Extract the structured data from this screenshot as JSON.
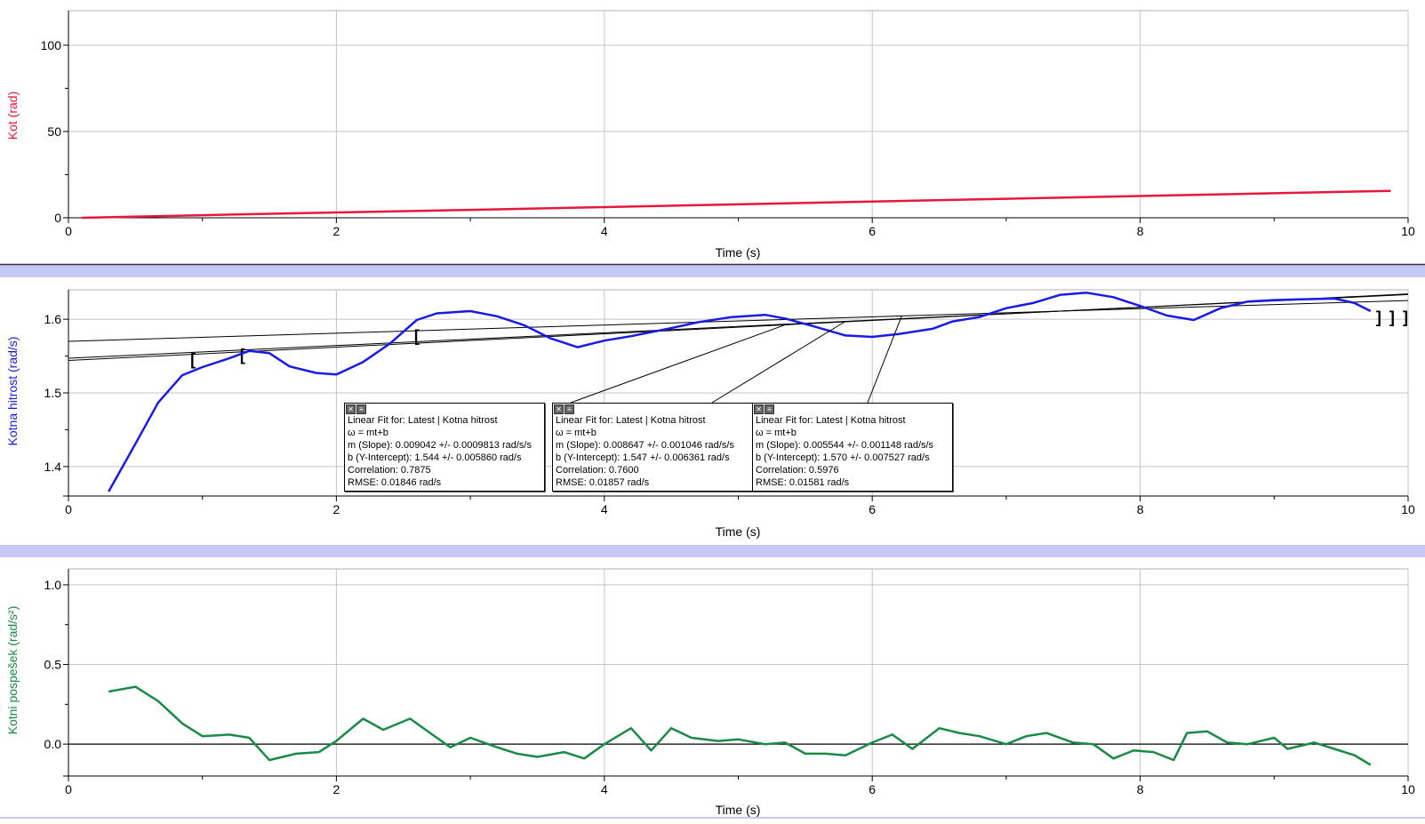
{
  "charts": [
    {
      "ylabel": "Kot (rad)",
      "xlabel": "Time (s)",
      "color": "#e8173c",
      "yticks": [
        "100",
        "50",
        "0"
      ],
      "xticks": [
        "0",
        "2",
        "4",
        "6",
        "8",
        "10"
      ]
    },
    {
      "ylabel": "Kotna hitrost (rad/s)",
      "xlabel": "Time (s)",
      "color": "#1a1ae6",
      "yticks": [
        "1.6",
        "1.5",
        "1.4"
      ],
      "xticks": [
        "0",
        "2",
        "4",
        "6",
        "8",
        "10"
      ]
    },
    {
      "ylabel": "Kotni pospešek (rad/s²)",
      "xlabel": "Time (s)",
      "color": "#1a8a46",
      "yticks": [
        "1.0",
        "0.5",
        "0.0"
      ],
      "xticks": [
        "0",
        "2",
        "4",
        "6",
        "8",
        "10"
      ]
    }
  ],
  "fits": [
    {
      "title": "Linear Fit for: Latest | Kotna hitrost",
      "equation": "ω = mt+b",
      "slope": "m (Slope): 0.009042 +/- 0.0009813 rad/s/s",
      "intercept": "b (Y-Intercept): 1.544 +/- 0.005860 rad/s",
      "correlation": "Correlation: 0.7875",
      "rmse": "RMSE: 0.01846 rad/s"
    },
    {
      "title": "Linear Fit for: Latest | Kotna hitrost",
      "equation": "ω = mt+b",
      "slope": "m (Slope): 0.008647 +/- 0.001046 rad/s/s",
      "intercept": "b (Y-Intercept): 1.547 +/- 0.006361 rad/s",
      "correlation": "Correlation: 0.7600",
      "rmse": "RMSE: 0.01857 rad/s"
    },
    {
      "title": "Linear Fit for: Latest | Kotna hitrost",
      "equation": "ω = mt+b",
      "slope": "m (Slope): 0.005544 +/- 0.001148 rad/s/s",
      "intercept": "b (Y-Intercept): 1.570 +/- 0.007527 rad/s",
      "correlation": "Correlation: 0.5976",
      "rmse": "RMSE: 0.01581 rad/s"
    }
  ],
  "chart_data": [
    {
      "type": "line",
      "xlabel": "Time (s)",
      "ylabel": "Kot (rad)",
      "xlim": [
        0,
        10
      ],
      "ylim": [
        0,
        120
      ],
      "grid": true,
      "series": [
        {
          "x": [
            0.1,
            1,
            2,
            3,
            4,
            5,
            6,
            7,
            8,
            9,
            9.87
          ],
          "y": [
            0,
            1.5,
            3.1,
            4.6,
            6.2,
            7.8,
            9.4,
            11,
            12.6,
            14.2,
            15.6
          ]
        }
      ]
    },
    {
      "type": "line",
      "xlabel": "Time (s)",
      "ylabel": "Kotna hitrost (rad/s)",
      "xlim": [
        0,
        10
      ],
      "ylim": [
        1.36,
        1.64
      ],
      "grid": true,
      "series": [
        {
          "x": [
            0.3,
            0.5,
            0.67,
            0.85,
            1.0,
            1.2,
            1.35,
            1.5,
            1.65,
            1.85,
            2.0,
            2.2,
            2.4,
            2.6,
            2.75,
            3.0,
            3.2,
            3.4,
            3.6,
            3.8,
            4.0,
            4.2,
            4.5,
            4.7,
            4.95,
            5.2,
            5.35,
            5.55,
            5.8,
            6.0,
            6.2,
            6.45,
            6.6,
            6.8,
            7.0,
            7.2,
            7.4,
            7.6,
            7.8,
            8.0,
            8.2,
            8.4,
            8.6,
            8.8,
            9.0,
            9.2,
            9.45,
            9.6,
            9.72
          ],
          "y": [
            1.366,
            1.431,
            1.487,
            1.524,
            1.535,
            1.547,
            1.557,
            1.554,
            1.536,
            1.527,
            1.525,
            1.542,
            1.567,
            1.599,
            1.608,
            1.611,
            1.604,
            1.592,
            1.574,
            1.562,
            1.571,
            1.577,
            1.588,
            1.596,
            1.603,
            1.606,
            1.601,
            1.591,
            1.578,
            1.576,
            1.58,
            1.587,
            1.597,
            1.603,
            1.615,
            1.622,
            1.633,
            1.636,
            1.63,
            1.618,
            1.605,
            1.599,
            1.615,
            1.624,
            1.626,
            1.627,
            1.628,
            1.622,
            1.611
          ]
        }
      ],
      "fits": [
        {
          "slope": 0.009042,
          "intercept": 1.544,
          "t_range": [
            0.93,
            9.78
          ]
        },
        {
          "slope": 0.008647,
          "intercept": 1.547,
          "t_range": [
            1.3,
            9.88
          ]
        },
        {
          "slope": 0.005544,
          "intercept": 1.57,
          "t_range": [
            2.6,
            9.98
          ]
        }
      ]
    },
    {
      "type": "line",
      "xlabel": "Time (s)",
      "ylabel": "Kotni pospešek (rad/s²)",
      "xlim": [
        0,
        10
      ],
      "ylim": [
        -0.2,
        1.1
      ],
      "grid": true,
      "series": [
        {
          "x": [
            0.3,
            0.5,
            0.67,
            0.85,
            1.0,
            1.2,
            1.35,
            1.5,
            1.7,
            1.87,
            2.0,
            2.2,
            2.35,
            2.55,
            2.7,
            2.85,
            3.0,
            3.2,
            3.35,
            3.5,
            3.7,
            3.85,
            4.0,
            4.2,
            4.35,
            4.5,
            4.65,
            4.85,
            5.0,
            5.2,
            5.35,
            5.5,
            5.65,
            5.8,
            6.0,
            6.15,
            6.3,
            6.5,
            6.65,
            6.8,
            7.0,
            7.15,
            7.3,
            7.5,
            7.65,
            7.8,
            7.95,
            8.1,
            8.25,
            8.35,
            8.5,
            8.65,
            8.8,
            9.0,
            9.1,
            9.3,
            9.45,
            9.6,
            9.72
          ],
          "y": [
            0.33,
            0.36,
            0.27,
            0.13,
            0.05,
            0.06,
            0.04,
            -0.1,
            -0.06,
            -0.05,
            0.02,
            0.16,
            0.09,
            0.16,
            0.07,
            -0.02,
            0.04,
            -0.02,
            -0.06,
            -0.08,
            -0.05,
            -0.09,
            0.0,
            0.1,
            -0.04,
            0.1,
            0.04,
            0.02,
            0.03,
            0.0,
            0.01,
            -0.06,
            -0.06,
            -0.07,
            0.01,
            0.06,
            -0.03,
            0.1,
            0.07,
            0.05,
            0.0,
            0.05,
            0.07,
            0.01,
            0.0,
            -0.09,
            -0.04,
            -0.05,
            -0.1,
            0.07,
            0.08,
            0.01,
            0.0,
            0.04,
            -0.03,
            0.01,
            -0.03,
            -0.07,
            -0.13
          ]
        }
      ]
    }
  ]
}
